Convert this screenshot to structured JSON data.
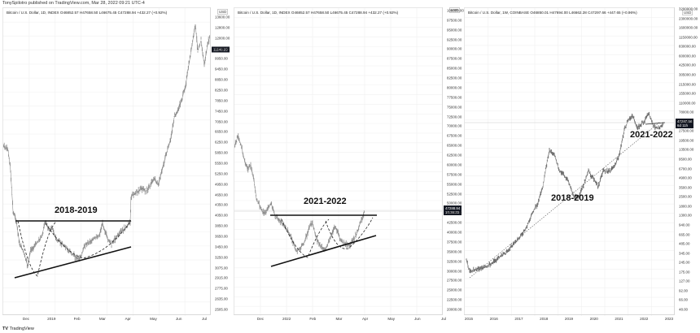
{
  "header": {
    "publisher": "TonySpilotro published on TradingView.com, Mar 28, 2022 09:21 UTC-4"
  },
  "watermark": {
    "logo": "TV",
    "text": "TradingView"
  },
  "chart_data": [
    {
      "type": "candlestick",
      "title": "Bitcoin / U.S. Dollar, 1D, INDEX O46852.57 H47658.50 L46675.45 C47288.94 +432.27 (+0.92%)",
      "period_label": "2018-2019",
      "currency": "USD",
      "last_price_badge": "11140.29",
      "y_ticks": [
        "13600.00",
        "12800.00",
        "12000.00",
        "10450.00",
        "9950.00",
        "9450.00",
        "8850.00",
        "8250.00",
        "7850.00",
        "7450.00",
        "7050.00",
        "6650.00",
        "6250.00",
        "5850.00",
        "5550.00",
        "5250.00",
        "4950.00",
        "4650.00",
        "4350.00",
        "4050.00",
        "3850.00",
        "3650.00",
        "3450.00",
        "3250.00",
        "3075.00",
        "2915.00",
        "2775.00",
        "2635.00",
        "2505.00"
      ],
      "x_ticks": [
        "Dec",
        "2019",
        "Feb",
        "Mar",
        "Apr",
        "May",
        "Jun",
        "Jul"
      ],
      "annotations": [
        "horizontal resistance ~4200",
        "rising support trendline",
        "dashed cup curves"
      ],
      "approx_path": [
        [
          0,
          6300
        ],
        [
          0.04,
          5600
        ],
        [
          0.1,
          3700
        ],
        [
          0.14,
          3300
        ],
        [
          0.18,
          3500
        ],
        [
          0.22,
          4100
        ],
        [
          0.28,
          3650
        ],
        [
          0.38,
          3450
        ],
        [
          0.42,
          3900
        ],
        [
          0.5,
          3850
        ],
        [
          0.55,
          4100
        ],
        [
          0.56,
          5000
        ],
        [
          0.6,
          5200
        ],
        [
          0.66,
          5800
        ],
        [
          0.72,
          7800
        ],
        [
          0.78,
          8600
        ],
        [
          0.82,
          8000
        ],
        [
          0.88,
          9500
        ],
        [
          0.93,
          13600
        ],
        [
          0.97,
          11000
        ],
        [
          1.0,
          12500
        ]
      ]
    },
    {
      "type": "candlestick",
      "title": "Bitcoin / U.S. Dollar, 1D, INDEX O46852.57 H47658.50 L46675.45 C47288.94 +432.27 (+0.92%)",
      "period_label": "2021-2022",
      "currency": "USD",
      "last_price_badge": "47288.94",
      "badge_countdown": "10:38:33",
      "y_ticks": [
        "100000.00",
        "97500.00",
        "95000.00",
        "92500.00",
        "90000.00",
        "87500.00",
        "85000.00",
        "82500.00",
        "80000.00",
        "77500.00",
        "75000.00",
        "72500.00",
        "70000.00",
        "67500.00",
        "65000.00",
        "62500.00",
        "60000.00",
        "57500.00",
        "55000.00",
        "52500.00",
        "50000.00",
        "45000.00",
        "42500.00",
        "40000.00",
        "37500.00",
        "35000.00",
        "32500.00",
        "30000.00",
        "27500.00",
        "25000.00",
        "22500.00",
        "20000.00"
      ],
      "x_ticks": [
        "Dec",
        "2022",
        "Feb",
        "Mar",
        "Apr",
        "May",
        "Jun",
        "Jul"
      ],
      "annotations": [
        "horizontal resistance ~45000",
        "rising support trendline",
        "dashed cup curves"
      ],
      "approx_path": [
        [
          0,
          68000
        ],
        [
          0.06,
          60000
        ],
        [
          0.1,
          50000
        ],
        [
          0.16,
          47000
        ],
        [
          0.2,
          49000
        ],
        [
          0.24,
          45000
        ],
        [
          0.3,
          41000
        ],
        [
          0.36,
          35000
        ],
        [
          0.42,
          40000
        ],
        [
          0.46,
          44500
        ],
        [
          0.5,
          37000
        ],
        [
          0.56,
          36500
        ],
        [
          0.6,
          44500
        ],
        [
          0.64,
          38000
        ],
        [
          0.7,
          39000
        ],
        [
          0.74,
          42000
        ],
        [
          0.78,
          47500
        ]
      ]
    },
    {
      "type": "candlestick",
      "title": "Bitcoin / U.S. Dollar, 1W, COINBASE O46850.01 H47694.00 L46662.28 C47297.66 +447.65 (+0.96%)",
      "scale": "log",
      "period_labels": [
        "2018-2019",
        "2021-2022"
      ],
      "currency": "USD",
      "last_price_badge": "47297.66",
      "badge_countdown": "6d 11h",
      "y_ticks": [
        "3200000.00",
        "2300000.00",
        "1600000.00",
        "1150000.00",
        "830000.00",
        "600000.00",
        "425000.00",
        "305000.00",
        "215000.00",
        "155000.00",
        "110000.00",
        "78000.00",
        "55000.00",
        "27500.00",
        "19500.00",
        "13500.00",
        "9500.00",
        "6700.00",
        "4900.00",
        "3500.00",
        "2500.00",
        "1800.00",
        "1300.00",
        "940.00",
        "665.00",
        "485.00",
        "345.00",
        "245.00",
        "175.00",
        "127.00",
        "92.00",
        "66.00",
        "48.00"
      ],
      "x_ticks": [
        "2015",
        "2016",
        "2017",
        "2018",
        "2019",
        "2020",
        "2021",
        "2022",
        "2023"
      ],
      "annotations": [
        "long-term dotted log trendline",
        "horizontal line at current price"
      ]
    }
  ]
}
